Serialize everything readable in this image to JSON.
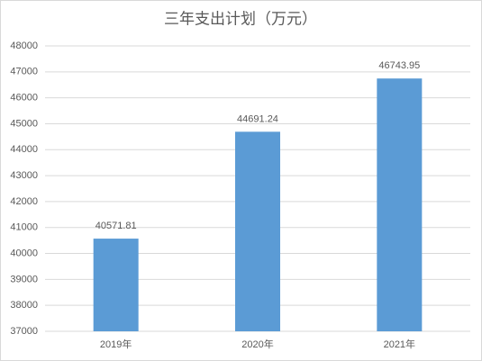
{
  "chart_data": {
    "type": "bar",
    "title": "三年支出计划（万元）",
    "categories": [
      "2019年",
      "2020年",
      "2021年"
    ],
    "values": [
      40571.81,
      44691.24,
      46743.95
    ],
    "color": "#5b9bd5",
    "ylim": [
      37000,
      48000
    ],
    "yticks": [
      37000,
      38000,
      39000,
      40000,
      41000,
      42000,
      43000,
      44000,
      45000,
      46000,
      47000,
      48000
    ],
    "grid": true
  }
}
